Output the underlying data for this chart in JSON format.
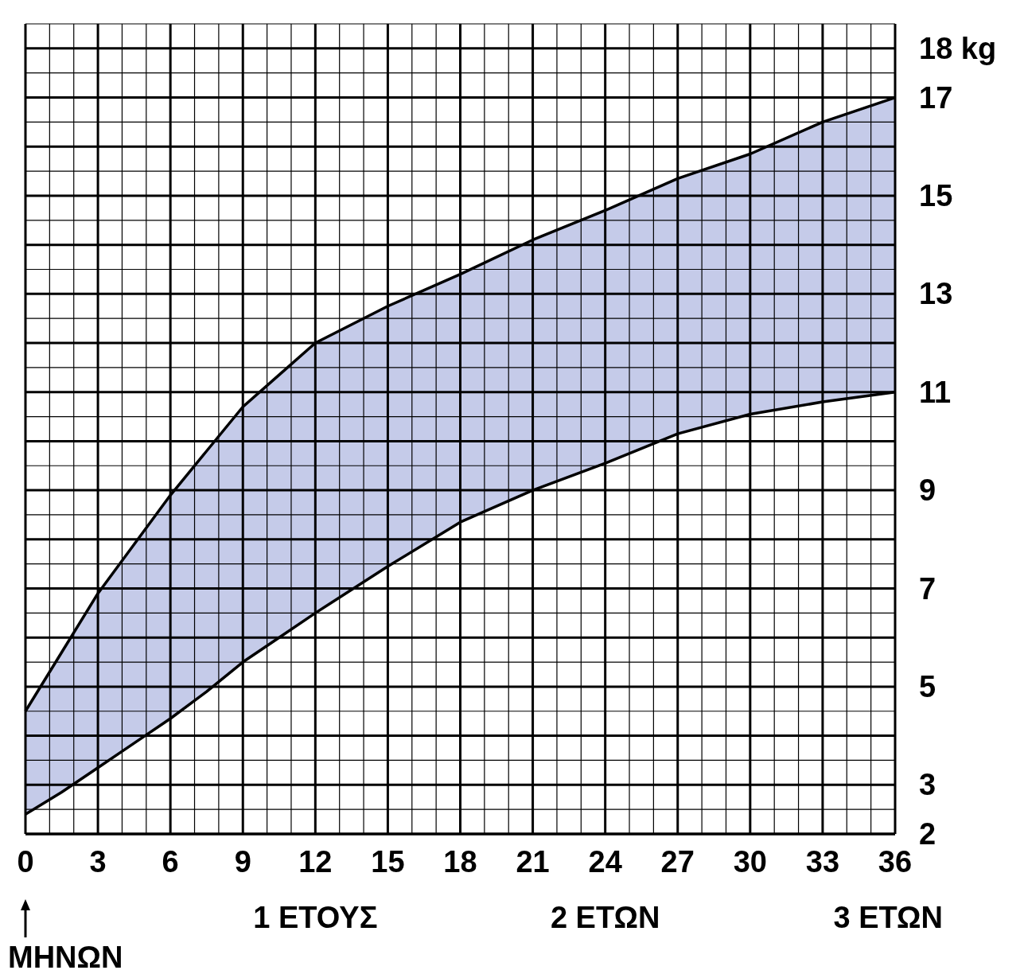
{
  "chart_data": {
    "type": "area",
    "xlabel": "ΜΗΝΩΝ",
    "x": [
      0,
      1.5,
      3,
      4.5,
      6,
      7.5,
      9,
      10.5,
      12,
      15,
      18,
      21,
      24,
      27,
      30,
      33,
      36
    ],
    "series": [
      {
        "color": "#c5cbe9",
        "values": [
          4.5,
          5.7,
          6.9,
          7.9,
          8.9,
          9.8,
          10.7,
          11.35,
          12.0,
          12.75,
          13.4,
          14.1,
          14.7,
          15.35,
          15.85,
          16.5,
          17.0
        ]
      },
      {
        "color": "#ffffff",
        "values": [
          2.4,
          2.85,
          3.35,
          3.85,
          4.35,
          4.9,
          5.5,
          6.0,
          6.5,
          7.45,
          8.35,
          9.0,
          9.55,
          10.15,
          10.55,
          10.8,
          11.0
        ]
      }
    ],
    "xlim": [
      0,
      36
    ],
    "xticks": [
      0,
      3,
      6,
      9,
      12,
      15,
      18,
      21,
      24,
      27,
      30,
      33,
      36
    ],
    "ylim": [
      2,
      18.5
    ],
    "yticks": [
      2,
      3,
      5,
      7,
      9,
      11,
      13,
      15,
      17,
      {
        "value": 18,
        "label": "18 kg"
      }
    ],
    "grid": true,
    "annotations": [
      "1 ΕΤΟΥΣ",
      "2 ΕΤΩΝ",
      "3 ΕΤΩΝ"
    ]
  }
}
